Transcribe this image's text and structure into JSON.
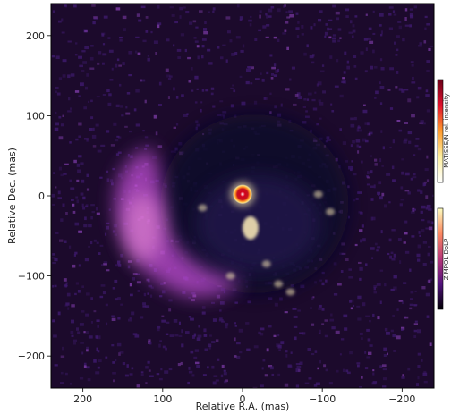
{
  "chart_data": {
    "type": "heatmap",
    "xlabel": "Relative R.A. (mas)",
    "ylabel": "Relative Dec. (mas)",
    "xlim": [
      240,
      -240
    ],
    "ylim": [
      -240,
      240
    ],
    "x_ticks": [
      200,
      100,
      0,
      -100,
      -200
    ],
    "y_ticks": [
      200,
      100,
      0,
      -100,
      -200
    ],
    "x_tick_labels": [
      "200",
      "100",
      "0",
      "−100",
      "−200"
    ],
    "y_tick_labels": [
      "200",
      "100",
      "0",
      "−100",
      "−200"
    ],
    "grid": false,
    "colorbars": [
      {
        "label": "MATISSE/N rel. intensity",
        "colormap": "hot",
        "position": "right-upper"
      },
      {
        "label": "ZIMPOL DoLP",
        "colormap": "magma",
        "position": "right-lower"
      }
    ],
    "features": {
      "central_source": {
        "x": 0,
        "y": 2,
        "layer": "MATISSE/N rel. intensity"
      },
      "clumps": [
        {
          "x": -10,
          "y": -40
        },
        {
          "x": 15,
          "y": -100
        },
        {
          "x": -30,
          "y": -85
        },
        {
          "x": -45,
          "y": -110
        },
        {
          "x": -60,
          "y": -120
        },
        {
          "x": 50,
          "y": -15
        },
        {
          "x": -95,
          "y": 2
        },
        {
          "x": -110,
          "y": -20
        }
      ],
      "arc_peak": {
        "x": 125,
        "y": -40
      }
    },
    "colors": {
      "background": "#1c0a2c",
      "noise_mid": "#3e1a6d",
      "noise_bright": "#7a3aa4",
      "arc": "#c14fd5",
      "arc_peak": "#ee91d8",
      "cavity": "#0d0a2a",
      "clump": "#f3e3b3",
      "core": "#d4001b"
    }
  }
}
